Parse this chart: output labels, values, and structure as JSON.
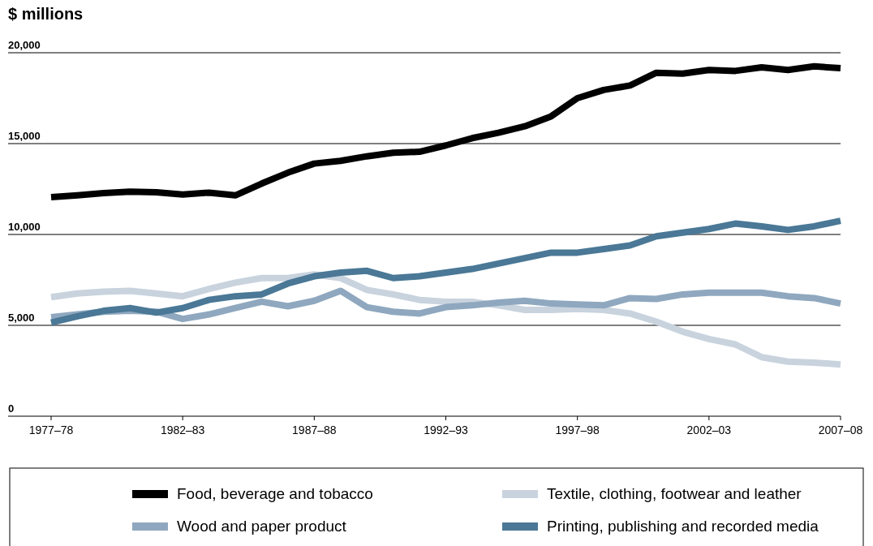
{
  "chart_data": {
    "type": "line",
    "ylabel": "$ millions",
    "categories": [
      "1977–78",
      null,
      null,
      null,
      null,
      "1982–83",
      null,
      null,
      null,
      null,
      "1987–88",
      null,
      null,
      null,
      null,
      "1992–93",
      null,
      null,
      null,
      null,
      "1997–98",
      null,
      null,
      null,
      null,
      "2002–03",
      null,
      null,
      null,
      null,
      "2007–08"
    ],
    "series": [
      {
        "name": "Food, beverage and tobacco",
        "color": "#000000",
        "values": [
          12050,
          12150,
          12280,
          12350,
          12320,
          12200,
          12300,
          12150,
          12800,
          13400,
          13900,
          14050,
          14300,
          14500,
          14550,
          14900,
          15300,
          15600,
          15950,
          16500,
          17500,
          17950,
          18200,
          18900,
          18850,
          19050,
          19000,
          19200,
          19050,
          19250,
          19150
        ]
      },
      {
        "name": "Textile, clothing, footwear and leather",
        "color": "#c8d3de",
        "values": [
          6550,
          6750,
          6850,
          6900,
          6750,
          6600,
          7000,
          7350,
          7600,
          7600,
          7800,
          7600,
          6950,
          6700,
          6400,
          6300,
          6300,
          6100,
          5850,
          5850,
          5900,
          5850,
          5650,
          5200,
          4650,
          4250,
          3950,
          3250,
          3000,
          2950,
          2850
        ]
      },
      {
        "name": "Wood and paper product",
        "color": "#8fa8bf",
        "values": [
          5450,
          5600,
          5750,
          5800,
          5750,
          5350,
          5600,
          5950,
          6300,
          6050,
          6350,
          6900,
          6000,
          5750,
          5650,
          6000,
          6100,
          6250,
          6350,
          6200,
          6150,
          6100,
          6500,
          6450,
          6700,
          6800,
          6800,
          6800,
          6600,
          6500,
          6200
        ]
      },
      {
        "name": "Printing, publishing and recorded media",
        "color": "#4a7896",
        "values": [
          5150,
          5500,
          5800,
          5950,
          5700,
          5950,
          6400,
          6600,
          6700,
          7300,
          7700,
          7900,
          8000,
          7600,
          7700,
          7900,
          8100,
          8400,
          8700,
          9000,
          9000,
          9200,
          9400,
          9900,
          10100,
          10300,
          10600,
          10450,
          10250,
          10450,
          10750
        ]
      }
    ],
    "ylim": [
      0,
      20000
    ],
    "yticks": [
      0,
      {
        "value": 5000,
        "label": "5,000"
      },
      {
        "value": 10000,
        "label": "10,000"
      },
      {
        "value": 15000,
        "label": "15,000"
      },
      {
        "value": 20000,
        "label": "20,000"
      }
    ],
    "grid": "y",
    "legend": "bottom",
    "line_style": "solid",
    "marker": "none"
  }
}
